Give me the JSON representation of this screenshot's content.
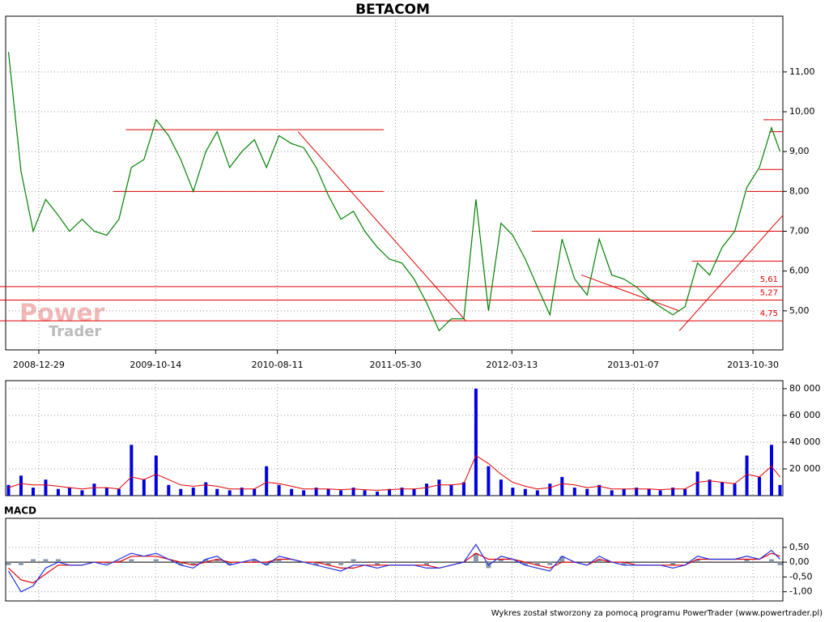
{
  "chart_data": [
    {
      "type": "line",
      "title": "BETACOM",
      "color": "#008000",
      "watermark": [
        "Power",
        "Trader"
      ],
      "x": [
        "2008-10-15",
        "2008-11-15",
        "2008-12-15",
        "2009-01-15",
        "2009-02-15",
        "2009-03-15",
        "2009-04-15",
        "2009-05-15",
        "2009-06-15",
        "2009-07-15",
        "2009-08-15",
        "2009-09-15",
        "2009-10-15",
        "2009-11-15",
        "2009-12-15",
        "2010-01-15",
        "2010-02-15",
        "2010-03-15",
        "2010-04-15",
        "2010-05-15",
        "2010-06-15",
        "2010-07-15",
        "2010-08-15",
        "2010-09-15",
        "2010-10-15",
        "2010-11-15",
        "2010-12-15",
        "2011-01-15",
        "2011-02-15",
        "2011-03-15",
        "2011-04-15",
        "2011-05-15",
        "2011-06-15",
        "2011-07-15",
        "2011-08-15",
        "2011-09-15",
        "2011-10-15",
        "2011-11-15",
        "2011-12-15",
        "2012-01-15",
        "2012-02-15",
        "2012-03-15",
        "2012-04-15",
        "2012-05-15",
        "2012-06-15",
        "2012-07-15",
        "2012-08-15",
        "2012-09-15",
        "2012-10-15",
        "2012-11-15",
        "2012-12-15",
        "2013-01-15",
        "2013-02-15",
        "2013-03-15",
        "2013-04-15",
        "2013-05-15",
        "2013-06-15",
        "2013-07-15",
        "2013-08-15",
        "2013-09-15",
        "2013-10-15",
        "2013-11-15",
        "2013-12-15",
        "2014-01-05"
      ],
      "values": [
        11.5,
        8.5,
        7.0,
        7.8,
        7.4,
        7.0,
        7.3,
        7.0,
        6.9,
        7.3,
        8.6,
        8.8,
        9.8,
        9.4,
        8.8,
        8.0,
        9.0,
        9.5,
        8.6,
        9.0,
        9.3,
        8.6,
        9.4,
        9.2,
        9.1,
        8.6,
        7.9,
        7.3,
        7.5,
        7.0,
        6.6,
        6.3,
        6.2,
        5.8,
        5.2,
        4.5,
        4.8,
        4.8,
        7.8,
        5.0,
        7.2,
        6.9,
        6.3,
        5.6,
        4.9,
        6.8,
        5.8,
        5.4,
        6.8,
        5.9,
        5.8,
        5.6,
        5.3,
        5.1,
        4.9,
        5.1,
        6.2,
        5.9,
        6.6,
        7.0,
        8.1,
        8.6,
        9.6,
        9.0
      ],
      "xlim": [
        "2008-10-08",
        "2014-01-12"
      ],
      "xticks": [
        "2008-12-29",
        "2009-10-14",
        "2010-08-11",
        "2011-05-30",
        "2012-03-13",
        "2013-01-07",
        "2013-10-30"
      ],
      "ylim": [
        4.02,
        12.4
      ],
      "yticks": [
        {
          "value": 5,
          "label": "5,00"
        },
        {
          "value": 6,
          "label": "6,00"
        },
        {
          "value": 7,
          "label": "7,00"
        },
        {
          "value": 8,
          "label": "8,00"
        },
        {
          "value": 9,
          "label": "9,00"
        },
        {
          "value": 10,
          "label": "10,00"
        },
        {
          "value": 11,
          "label": "11,00"
        }
      ],
      "grid": true,
      "line_color": "#e00000",
      "levels": [
        {
          "value": 5.61,
          "label": "5,61"
        },
        {
          "value": 5.27,
          "label": "5,27"
        },
        {
          "value": 4.75,
          "label": "4,75"
        }
      ],
      "trend_lines": [
        {
          "x": [
            "2009-08-01",
            "2011-05-01"
          ],
          "values": [
            9.55,
            9.55
          ]
        },
        {
          "x": [
            "2009-07-01",
            "2011-05-01"
          ],
          "values": [
            8.0,
            8.0
          ]
        },
        {
          "x": [
            "2012-05-01",
            "2014-01-12"
          ],
          "values": [
            7.0,
            7.0
          ]
        },
        {
          "x": [
            "2013-06-01",
            "2014-01-12"
          ],
          "values": [
            6.25,
            6.25
          ]
        },
        {
          "x": [
            "2013-10-15",
            "2014-01-12"
          ],
          "values": [
            8.0,
            8.0
          ]
        },
        {
          "x": [
            "2013-11-15",
            "2014-01-12"
          ],
          "values": [
            8.55,
            8.55
          ]
        },
        {
          "x": [
            "2013-11-25",
            "2014-01-12"
          ],
          "values": [
            9.8,
            9.8
          ]
        },
        {
          "x": [
            "2013-12-10",
            "2014-01-12"
          ],
          "values": [
            9.5,
            9.5
          ]
        },
        {
          "x": [
            "2010-10-01",
            "2011-11-20"
          ],
          "values": [
            9.5,
            4.75
          ]
        },
        {
          "x": [
            "2012-09-01",
            "2013-05-01"
          ],
          "values": [
            5.9,
            5.0
          ]
        },
        {
          "x": [
            "2013-05-01",
            "2014-01-12"
          ],
          "values": [
            4.5,
            7.4
          ]
        }
      ]
    },
    {
      "type": "bar",
      "color": "#0000e0",
      "x": [
        "2008-10-15",
        "2008-11-15",
        "2008-12-15",
        "2009-01-15",
        "2009-02-15",
        "2009-03-15",
        "2009-04-15",
        "2009-05-15",
        "2009-06-15",
        "2009-07-15",
        "2009-08-15",
        "2009-09-15",
        "2009-10-15",
        "2009-11-15",
        "2009-12-15",
        "2010-01-15",
        "2010-02-15",
        "2010-03-15",
        "2010-04-15",
        "2010-05-15",
        "2010-06-15",
        "2010-07-15",
        "2010-08-15",
        "2010-09-15",
        "2010-10-15",
        "2010-11-15",
        "2010-12-15",
        "2011-01-15",
        "2011-02-15",
        "2011-03-15",
        "2011-04-15",
        "2011-05-15",
        "2011-06-15",
        "2011-07-15",
        "2011-08-15",
        "2011-09-15",
        "2011-10-15",
        "2011-11-15",
        "2011-12-15",
        "2012-01-15",
        "2012-02-15",
        "2012-03-15",
        "2012-04-15",
        "2012-05-15",
        "2012-06-15",
        "2012-07-15",
        "2012-08-15",
        "2012-09-15",
        "2012-10-15",
        "2012-11-15",
        "2012-12-15",
        "2013-01-15",
        "2013-02-15",
        "2013-03-15",
        "2013-04-15",
        "2013-05-15",
        "2013-06-15",
        "2013-07-15",
        "2013-08-15",
        "2013-09-15",
        "2013-10-15",
        "2013-11-15",
        "2013-12-15",
        "2014-01-05"
      ],
      "values": [
        8000,
        15000,
        6000,
        12000,
        5000,
        6000,
        4000,
        9000,
        6000,
        5000,
        38000,
        12000,
        30000,
        8000,
        5000,
        6000,
        10000,
        5000,
        4000,
        6000,
        5000,
        22000,
        8000,
        5000,
        4000,
        6000,
        5000,
        4000,
        6000,
        4000,
        3000,
        5000,
        6000,
        5000,
        9000,
        12000,
        8000,
        10000,
        80000,
        22000,
        12000,
        6000,
        5000,
        4000,
        9000,
        14000,
        6000,
        5000,
        8000,
        4000,
        5000,
        6000,
        5000,
        4000,
        6000,
        5000,
        18000,
        12000,
        10000,
        9000,
        30000,
        14000,
        38000,
        8000
      ],
      "ma_color": "#e00000",
      "ma_values": [
        6000,
        9000,
        8000,
        8000,
        7000,
        6000,
        5000,
        6000,
        6000,
        5000,
        14000,
        12000,
        16000,
        12000,
        8000,
        7000,
        8000,
        7000,
        5000,
        5000,
        5000,
        10000,
        9000,
        7000,
        5000,
        5000,
        5000,
        4500,
        5000,
        4500,
        4000,
        4500,
        5000,
        5000,
        6000,
        8000,
        8000,
        9000,
        30000,
        24000,
        16000,
        10000,
        7000,
        5000,
        6000,
        9000,
        8000,
        6000,
        7000,
        5000,
        5000,
        5000,
        5000,
        4500,
        5000,
        5000,
        10000,
        11000,
        10000,
        9000,
        16000,
        14000,
        22000,
        14000
      ],
      "xlim": [
        "2008-10-08",
        "2014-01-12"
      ],
      "ylim": [
        0,
        86000
      ],
      "yticks": [
        {
          "value": 20000,
          "label": "20 000"
        },
        {
          "value": 40000,
          "label": "40 000"
        },
        {
          "value": 60000,
          "label": "60 000"
        },
        {
          "value": 80000,
          "label": "80 000"
        }
      ],
      "grid": true
    },
    {
      "type": "line",
      "title": "MACD",
      "color": "#2030e0",
      "x": [
        "2008-10-15",
        "2008-11-15",
        "2008-12-15",
        "2009-01-15",
        "2009-02-15",
        "2009-03-15",
        "2009-04-15",
        "2009-05-15",
        "2009-06-15",
        "2009-07-15",
        "2009-08-15",
        "2009-09-15",
        "2009-10-15",
        "2009-11-15",
        "2009-12-15",
        "2010-01-15",
        "2010-02-15",
        "2010-03-15",
        "2010-04-15",
        "2010-05-15",
        "2010-06-15",
        "2010-07-15",
        "2010-08-15",
        "2010-09-15",
        "2010-10-15",
        "2010-11-15",
        "2010-12-15",
        "2011-01-15",
        "2011-02-15",
        "2011-03-15",
        "2011-04-15",
        "2011-05-15",
        "2011-06-15",
        "2011-07-15",
        "2011-08-15",
        "2011-09-15",
        "2011-10-15",
        "2011-11-15",
        "2011-12-15",
        "2012-01-15",
        "2012-02-15",
        "2012-03-15",
        "2012-04-15",
        "2012-05-15",
        "2012-06-15",
        "2012-07-15",
        "2012-08-15",
        "2012-09-15",
        "2012-10-15",
        "2012-11-15",
        "2012-12-15",
        "2013-01-15",
        "2013-02-15",
        "2013-03-15",
        "2013-04-15",
        "2013-05-15",
        "2013-06-15",
        "2013-07-15",
        "2013-08-15",
        "2013-09-15",
        "2013-10-15",
        "2013-11-15",
        "2013-12-15",
        "2014-01-05"
      ],
      "values": [
        -0.3,
        -1.0,
        -0.8,
        -0.2,
        0.0,
        -0.1,
        -0.1,
        0.0,
        -0.1,
        0.1,
        0.3,
        0.2,
        0.3,
        0.1,
        -0.1,
        -0.2,
        0.1,
        0.2,
        -0.1,
        0.0,
        0.1,
        -0.1,
        0.2,
        0.1,
        0.0,
        -0.1,
        -0.2,
        -0.3,
        -0.1,
        -0.1,
        -0.2,
        -0.1,
        -0.1,
        -0.1,
        -0.2,
        -0.2,
        -0.1,
        0.0,
        0.6,
        -0.1,
        0.2,
        0.1,
        -0.1,
        -0.2,
        -0.3,
        0.2,
        0.0,
        -0.1,
        0.2,
        0.0,
        -0.1,
        -0.1,
        -0.1,
        -0.1,
        -0.2,
        -0.1,
        0.2,
        0.1,
        0.1,
        0.1,
        0.2,
        0.1,
        0.4,
        0.1
      ],
      "signal_color": "#e00000",
      "signal_values": [
        -0.2,
        -0.6,
        -0.7,
        -0.4,
        -0.1,
        -0.1,
        -0.1,
        0.0,
        0.0,
        0.0,
        0.2,
        0.2,
        0.2,
        0.1,
        0.0,
        -0.1,
        0.0,
        0.1,
        0.0,
        0.0,
        0.0,
        0.0,
        0.1,
        0.1,
        0.0,
        0.0,
        -0.1,
        -0.2,
        -0.2,
        -0.1,
        -0.1,
        -0.1,
        -0.1,
        -0.1,
        -0.1,
        -0.2,
        -0.1,
        0.0,
        0.3,
        0.1,
        0.1,
        0.1,
        0.0,
        -0.1,
        -0.2,
        0.0,
        0.0,
        -0.1,
        0.1,
        0.0,
        0.0,
        -0.1,
        -0.1,
        -0.1,
        -0.1,
        -0.1,
        0.1,
        0.1,
        0.1,
        0.1,
        0.1,
        0.1,
        0.3,
        0.2
      ],
      "histogram_color": "#8898a8",
      "histogram_values": [
        -0.1,
        -0.1,
        0.1,
        0.1,
        0.1,
        0.0,
        0.0,
        0.0,
        -0.05,
        0.05,
        0.1,
        0.0,
        0.1,
        0.0,
        -0.1,
        -0.1,
        0.1,
        0.1,
        -0.1,
        0.0,
        0.1,
        -0.1,
        0.1,
        0.0,
        0.0,
        -0.1,
        -0.1,
        -0.1,
        0.1,
        0.0,
        -0.1,
        0.0,
        0.0,
        0.0,
        -0.1,
        0.0,
        0.0,
        0.0,
        0.3,
        -0.2,
        0.1,
        0.0,
        -0.1,
        -0.1,
        -0.1,
        0.2,
        0.0,
        0.0,
        0.1,
        0.0,
        -0.1,
        0.0,
        0.0,
        0.0,
        -0.1,
        0.0,
        0.1,
        0.0,
        0.0,
        0.0,
        0.1,
        0.0,
        0.1,
        -0.1
      ],
      "xlim": [
        "2008-10-08",
        "2014-01-12"
      ],
      "ylim": [
        -1.31,
        1.48
      ],
      "yticks": [
        {
          "value": -1,
          "label": "-1,00"
        },
        {
          "value": -0.5,
          "label": "-0,50"
        },
        {
          "value": 0,
          "label": "0,00"
        },
        {
          "value": 0.5,
          "label": "0,50"
        }
      ],
      "grid": true
    }
  ],
  "footer": "Wykres został stworzony za pomocą programu PowerTrader (www.powertrader.pl)"
}
